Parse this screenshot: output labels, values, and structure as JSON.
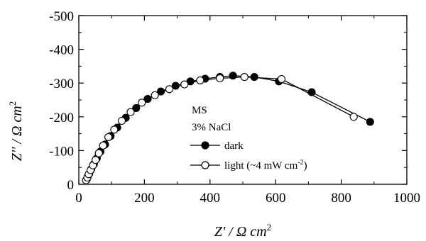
{
  "chart_data": {
    "type": "scatter",
    "x_axis": {
      "range": [
        0,
        1000
      ],
      "ticks": [
        0,
        200,
        400,
        600,
        800,
        1000
      ],
      "tick_labels": [
        "0",
        "200",
        "400",
        "600",
        "800",
        "1000"
      ],
      "label_main": "Z' / Ω cm",
      "label_sup": "2"
    },
    "y_axis": {
      "range": [
        0,
        -500
      ],
      "ticks": [
        0,
        -100,
        -200,
        -300,
        -400,
        -500
      ],
      "tick_labels": [
        "0",
        "-100",
        "-200",
        "-300",
        "-400",
        "-500"
      ],
      "label_main": "Z'' / Ω cm",
      "label_sup": "2"
    },
    "annotations": [
      "MS",
      "3% NaCl"
    ],
    "grid": false,
    "legend_position": "bottom-center",
    "series": [
      {
        "name": "dark",
        "marker": "filled-circle",
        "color": "#000000",
        "points": [
          [
            24,
            -14
          ],
          [
            27,
            -22
          ],
          [
            32,
            -32
          ],
          [
            38,
            -45
          ],
          [
            46,
            -60
          ],
          [
            55,
            -77
          ],
          [
            66,
            -97
          ],
          [
            80,
            -118
          ],
          [
            97,
            -143
          ],
          [
            117,
            -168
          ],
          [
            143,
            -197
          ],
          [
            175,
            -226
          ],
          [
            210,
            -253
          ],
          [
            250,
            -275
          ],
          [
            295,
            -292
          ],
          [
            340,
            -305
          ],
          [
            385,
            -313
          ],
          [
            430,
            -318
          ],
          [
            470,
            -322
          ],
          [
            535,
            -318
          ],
          [
            610,
            -305
          ],
          [
            710,
            -273
          ],
          [
            888,
            -185
          ]
        ]
      },
      {
        "name": "light (~4 mW cm",
        "name_sup": "-2",
        "name_suffix": ")",
        "marker": "open-circle",
        "color": "#000000",
        "points": [
          [
            22,
            -12
          ],
          [
            26,
            -20
          ],
          [
            30,
            -30
          ],
          [
            36,
            -42
          ],
          [
            43,
            -56
          ],
          [
            51,
            -72
          ],
          [
            61,
            -92
          ],
          [
            74,
            -115
          ],
          [
            90,
            -140
          ],
          [
            108,
            -162
          ],
          [
            131,
            -188
          ],
          [
            158,
            -214
          ],
          [
            192,
            -242
          ],
          [
            232,
            -264
          ],
          [
            276,
            -282
          ],
          [
            322,
            -296
          ],
          [
            370,
            -308
          ],
          [
            430,
            -314
          ],
          [
            505,
            -318
          ],
          [
            618,
            -312
          ],
          [
            838,
            -200
          ]
        ]
      }
    ]
  }
}
